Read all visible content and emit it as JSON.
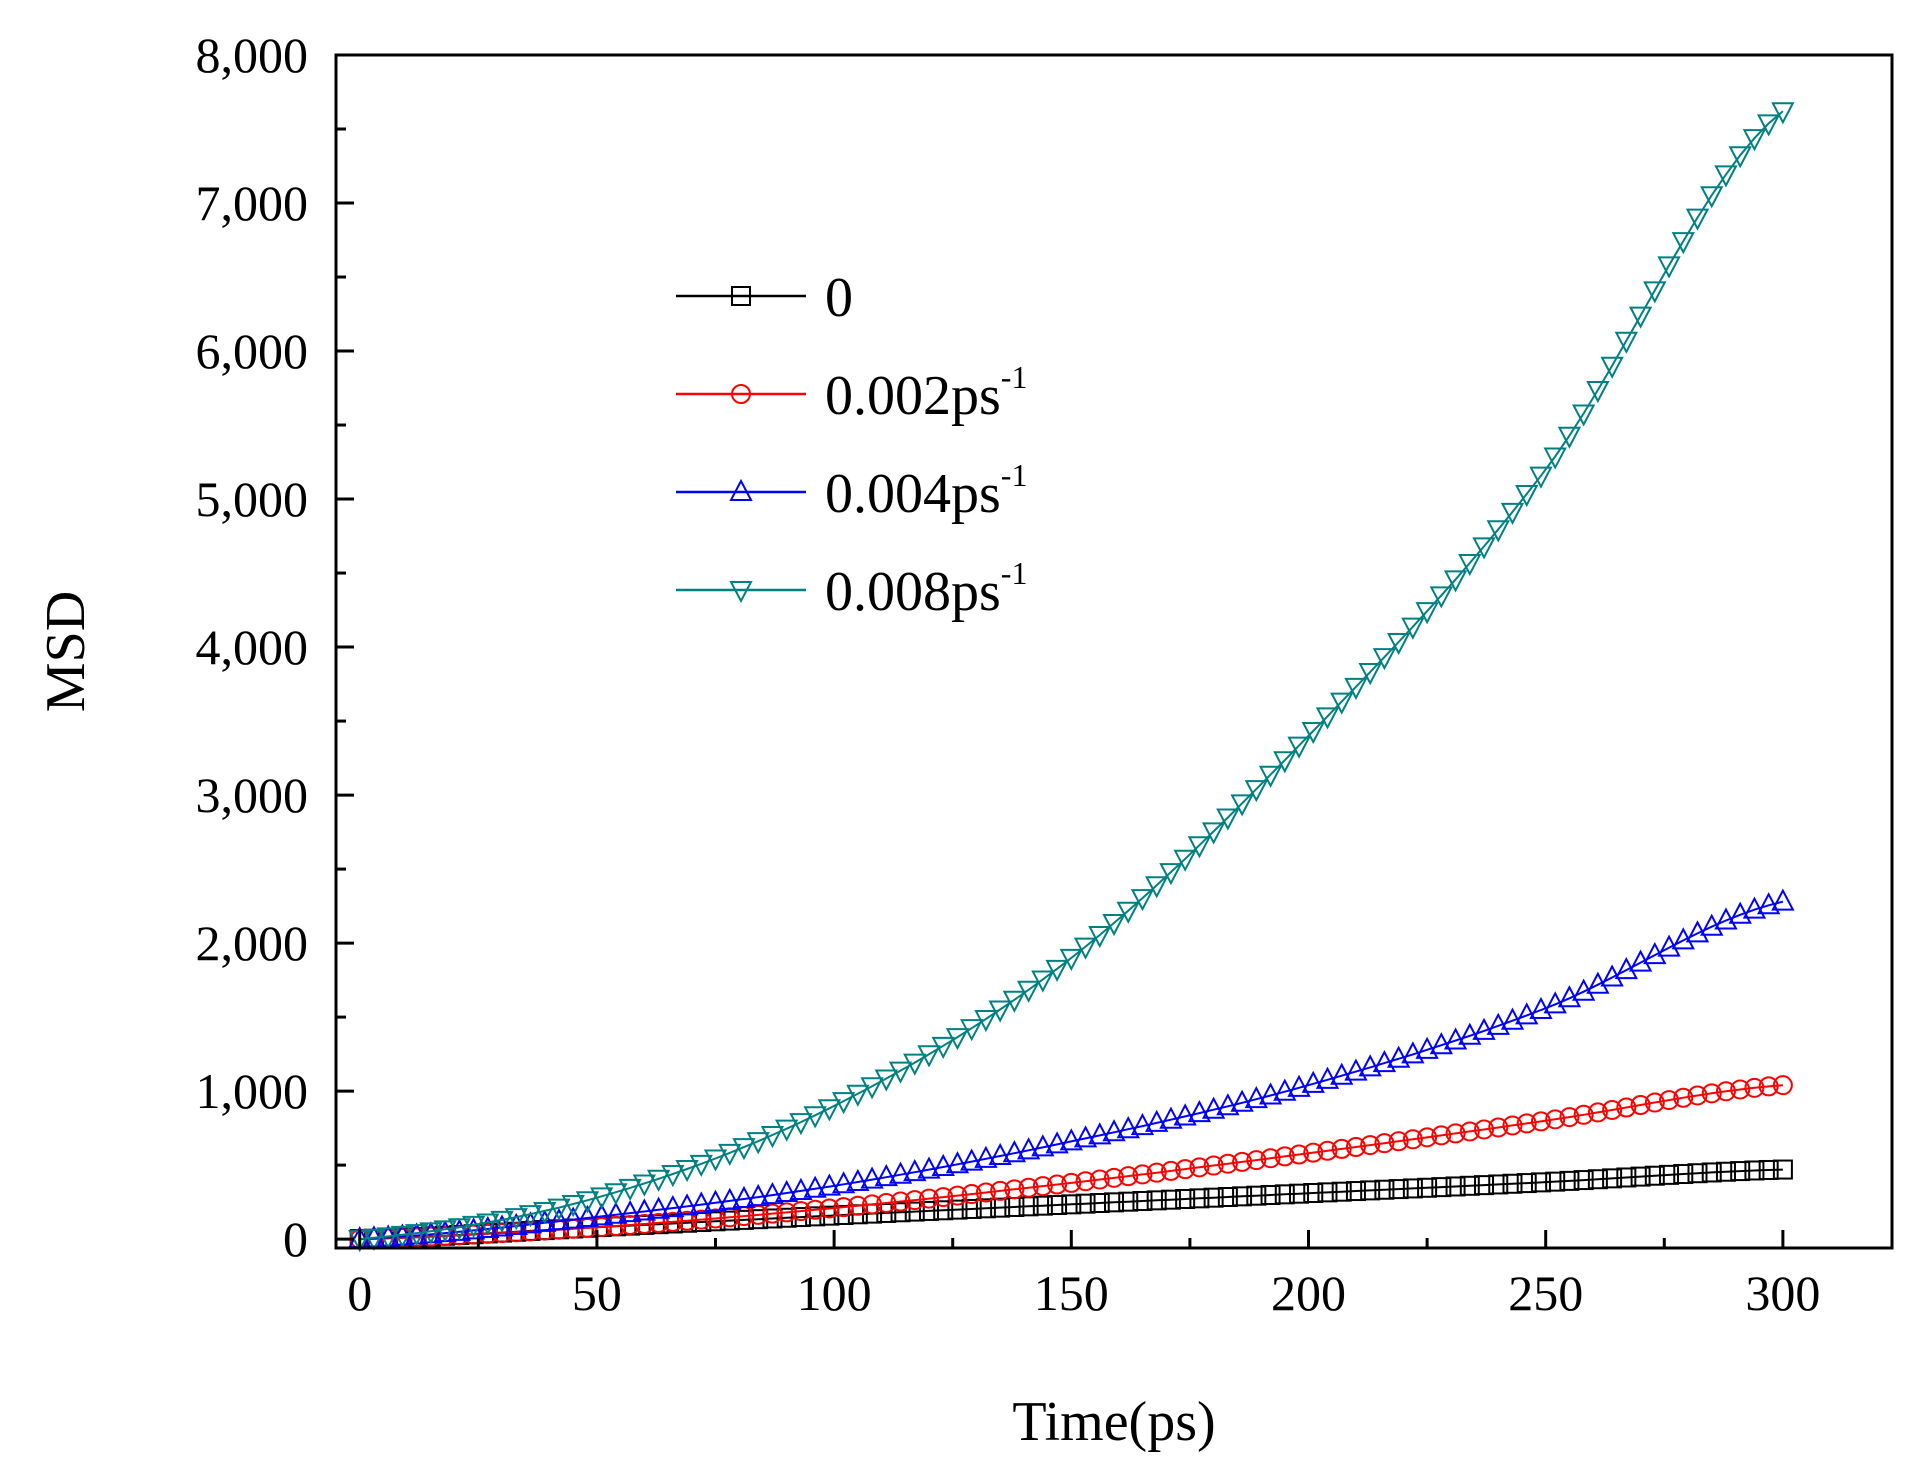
{
  "chart_data": {
    "type": "scatter",
    "title": "",
    "xlabel": "Time(ps)",
    "ylabel": "MSD",
    "xlim": [
      -5,
      323
    ],
    "ylim": [
      -60,
      8000
    ],
    "xticks": [
      0,
      50,
      100,
      150,
      200,
      250,
      300
    ],
    "xtick_labels": [
      "0",
      "50",
      "100",
      "150",
      "200",
      "250",
      "300"
    ],
    "yticks": [
      0,
      1000,
      2000,
      3000,
      4000,
      5000,
      6000,
      7000,
      8000
    ],
    "ytick_labels": [
      "0",
      "1,000",
      "2,000",
      "3,000",
      "4,000",
      "5,000",
      "6,000",
      "7,000",
      "8,000"
    ],
    "legend_position": "upper-left",
    "point_step": 3,
    "x_max": 300,
    "series": [
      {
        "name": "0",
        "label": "0",
        "sup": "",
        "color": "#000000",
        "marker": "square",
        "values_at_x": [
          0,
          50,
          100,
          150,
          200,
          250,
          300
        ],
        "values": [
          0,
          80,
          160,
          235,
          310,
          385,
          470
        ]
      },
      {
        "name": "0.002ps-1",
        "label": "0.002ps",
        "sup": "-1",
        "color": "#ff0000",
        "marker": "circle",
        "values_at_x": [
          0,
          50,
          100,
          150,
          200,
          250,
          300
        ],
        "values": [
          0,
          80,
          210,
          380,
          580,
          800,
          1040
        ]
      },
      {
        "name": "0.004ps-1",
        "label": "0.004ps",
        "sup": "-1",
        "color": "#0000ff",
        "marker": "triangle-up",
        "values_at_x": [
          0,
          50,
          100,
          150,
          200,
          250,
          300
        ],
        "values": [
          0,
          150,
          360,
          660,
          1040,
          1560,
          2280
        ]
      },
      {
        "name": "0.008ps-1",
        "label": "0.008ps",
        "sup": "-1",
        "color": "#008080",
        "marker": "triangle-down",
        "values_at_x": [
          0,
          50,
          100,
          150,
          200,
          250,
          300
        ],
        "values": [
          0,
          280,
          900,
          1900,
          3400,
          5200,
          7620
        ]
      }
    ]
  }
}
